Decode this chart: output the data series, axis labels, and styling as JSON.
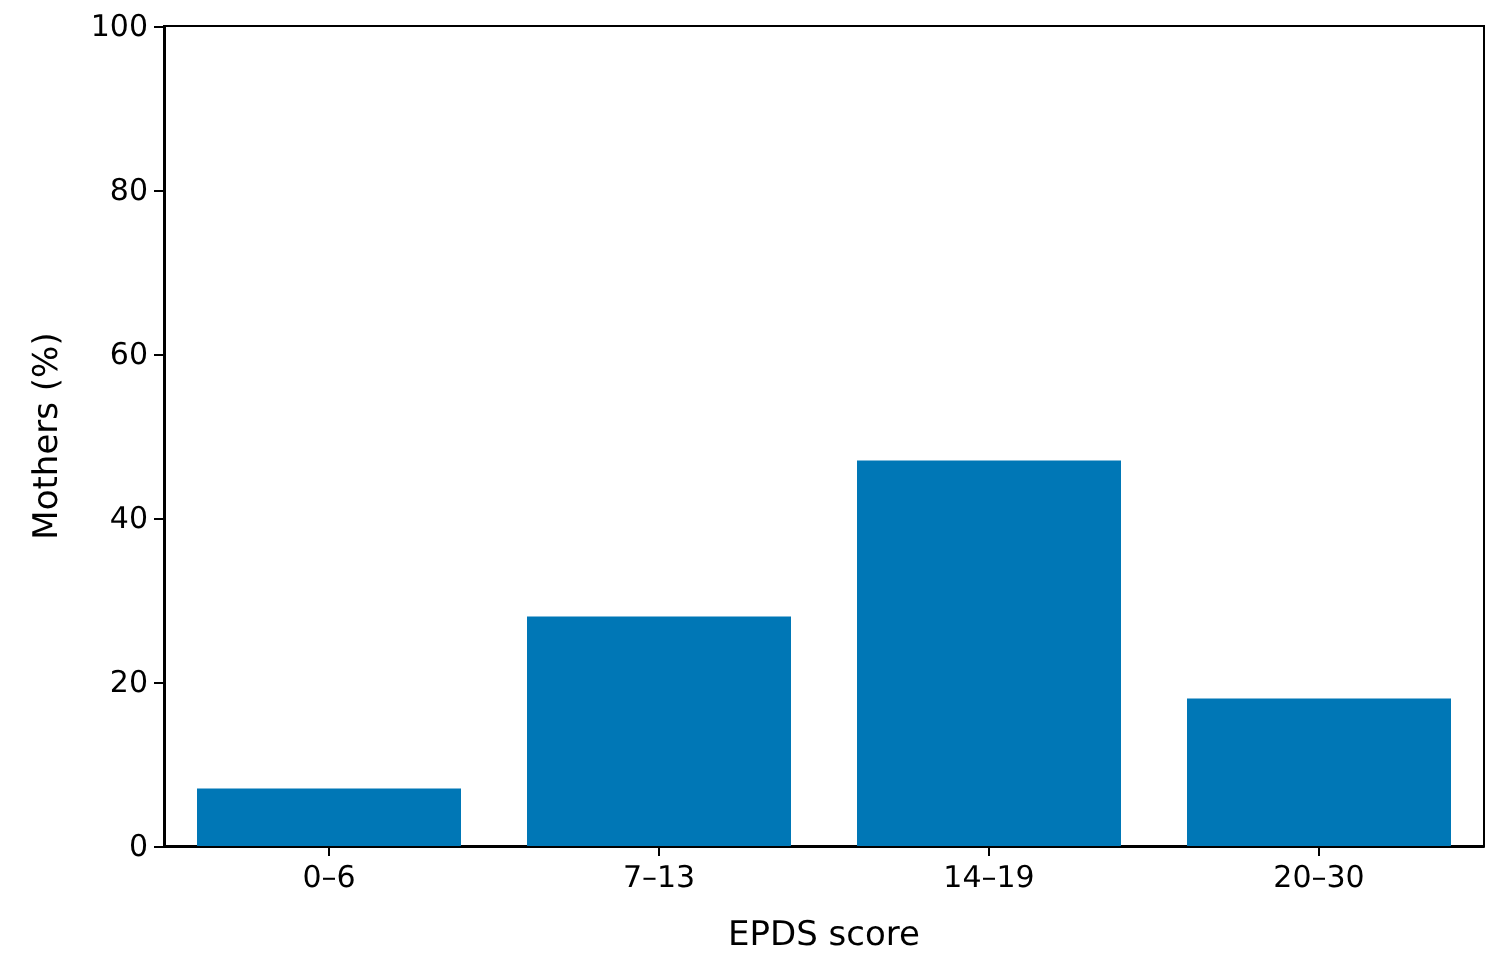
{
  "chart_data": {
    "type": "bar",
    "xlabel": "EPDS score",
    "ylabel": "Mothers (%)",
    "categories": [
      "0–6",
      "7–13",
      "14–19",
      "20–30"
    ],
    "values": [
      7,
      28,
      47,
      18
    ],
    "color": "#0077b6",
    "ylim": [
      0,
      100
    ],
    "yticks": [
      0,
      20,
      40,
      60,
      80,
      100
    ],
    "grid": false
  }
}
